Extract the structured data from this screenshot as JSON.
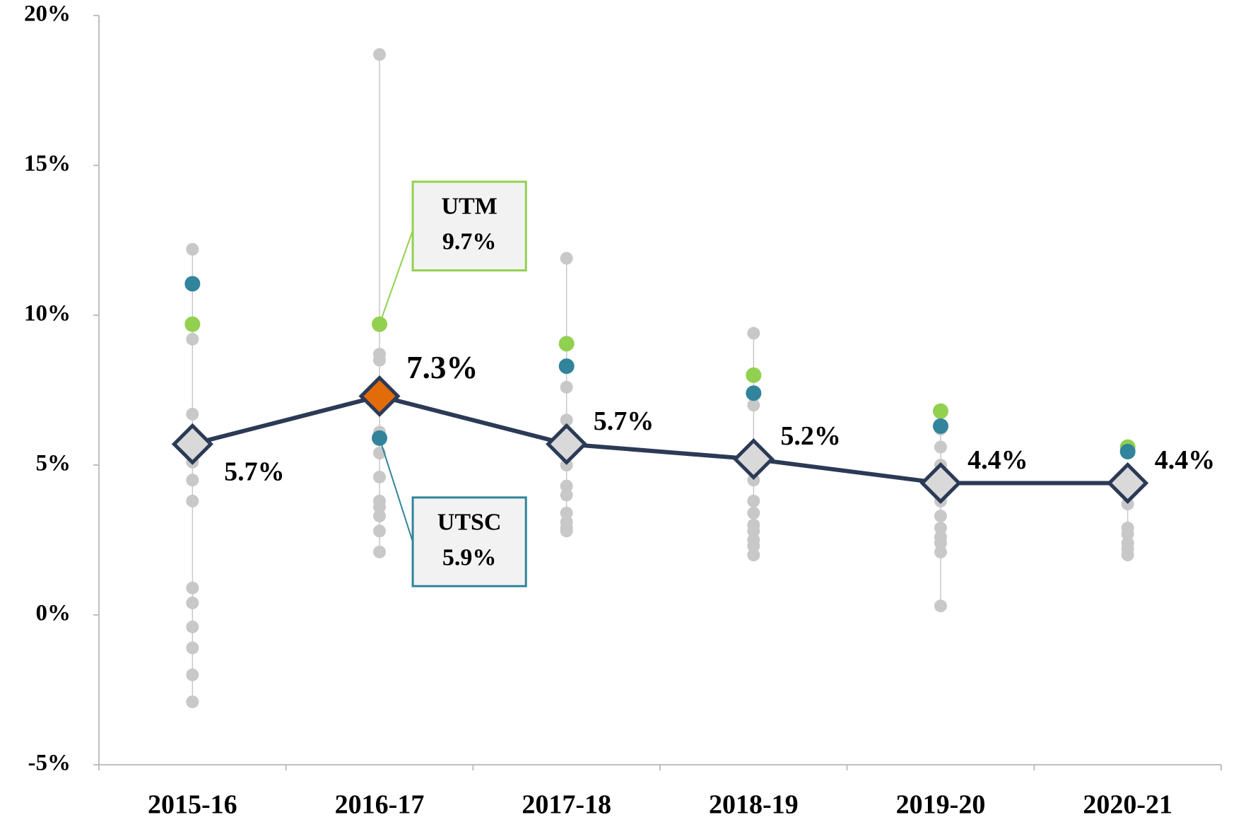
{
  "chart_data": {
    "type": "line",
    "categories": [
      "2015-16",
      "2016-17",
      "2017-18",
      "2018-19",
      "2019-20",
      "2020-21"
    ],
    "ylim": [
      -5,
      20
    ],
    "yticks": [
      {
        "value": -5,
        "label": "-5%"
      },
      {
        "value": 0,
        "label": "0%"
      },
      {
        "value": 5,
        "label": "5%"
      },
      {
        "value": 10,
        "label": "10%"
      },
      {
        "value": 15,
        "label": "15%"
      },
      {
        "value": 20,
        "label": "20%"
      }
    ],
    "average": {
      "color": "#2b3a55",
      "marker_colors": [
        "#d9d9d9",
        "#e36c0a",
        "#d9d9d9",
        "#d9d9d9",
        "#d9d9d9",
        "#d9d9d9"
      ],
      "values": [
        5.7,
        7.3,
        5.7,
        5.2,
        4.4,
        4.4
      ],
      "value_labels": [
        "5.7%",
        "7.3%",
        "5.7%",
        "5.2%",
        "4.4%",
        "4.4%"
      ]
    },
    "series": [
      {
        "name": "UTM",
        "color": "#92d050",
        "values": [
          9.7,
          9.7,
          9.05,
          8.0,
          6.8,
          5.6
        ],
        "value_labels": [
          null,
          "9.7%",
          null,
          null,
          null,
          null
        ]
      },
      {
        "name": "UTSC",
        "color": "#31849b",
        "values": [
          11.05,
          5.9,
          8.3,
          7.4,
          6.3,
          5.45
        ],
        "value_labels": [
          null,
          "5.9%",
          null,
          null,
          null,
          null
        ]
      }
    ],
    "others": {
      "color": "#c8c8c8",
      "values": [
        [
          12.2,
          9.2,
          6.7,
          5.1,
          4.5,
          3.8,
          0.9,
          0.4,
          -0.4,
          -1.1,
          -2.0,
          -2.9
        ],
        [
          18.7,
          8.7,
          8.5,
          6.1,
          5.4,
          4.6,
          3.8,
          3.6,
          3.3,
          2.8,
          2.1
        ],
        [
          11.9,
          7.6,
          6.5,
          6.1,
          5.0,
          4.3,
          4.0,
          3.4,
          3.1,
          2.9,
          2.8
        ],
        [
          9.4,
          7.0,
          4.5,
          3.8,
          3.4,
          3.0,
          2.8,
          2.5,
          2.3,
          2.0
        ],
        [
          6.2,
          5.6,
          5.0,
          3.8,
          3.3,
          2.9,
          2.6,
          2.4,
          2.1,
          0.3
        ],
        [
          3.7,
          2.9,
          2.7,
          2.4,
          2.2,
          2.0
        ]
      ]
    }
  }
}
